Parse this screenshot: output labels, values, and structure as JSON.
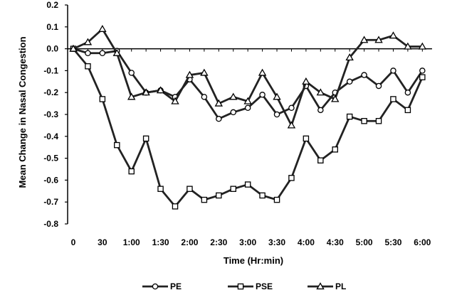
{
  "chart_data": {
    "type": "line",
    "title": "",
    "xlabel": "Time (Hr:min)",
    "ylabel": "Mean Change in Nasal Congestion",
    "ylim": [
      -0.8,
      0.2
    ],
    "yticks": [
      "0.2",
      "0.1",
      "0.0",
      "-0.1",
      "-0.2",
      "-0.3",
      "-0.4",
      "-0.5",
      "-0.6",
      "-0.7",
      "-0.8"
    ],
    "xticks": [
      "0",
      "30",
      "1:00",
      "1:30",
      "2:00",
      "2:30",
      "3:00",
      "3:30",
      "4:00",
      "4:30",
      "5:00",
      "5:30",
      "6:00"
    ],
    "x_minutes": [
      0,
      15,
      30,
      45,
      60,
      75,
      90,
      105,
      120,
      135,
      150,
      165,
      180,
      195,
      210,
      225,
      240,
      255,
      270,
      285,
      300,
      315,
      330,
      345,
      360
    ],
    "grid": false,
    "legend_position": "bottom",
    "series": [
      {
        "name": "PE",
        "marker": "circle",
        "values": [
          0,
          -0.02,
          -0.02,
          -0.01,
          -0.11,
          -0.2,
          -0.19,
          -0.22,
          -0.14,
          -0.22,
          -0.32,
          -0.29,
          -0.27,
          -0.21,
          -0.3,
          -0.27,
          -0.17,
          -0.28,
          -0.2,
          -0.15,
          -0.12,
          -0.17,
          -0.1,
          -0.2,
          -0.1
        ]
      },
      {
        "name": "PSE",
        "marker": "square",
        "values": [
          0,
          -0.08,
          -0.23,
          -0.44,
          -0.56,
          -0.41,
          -0.64,
          -0.72,
          -0.64,
          -0.69,
          -0.67,
          -0.64,
          -0.62,
          -0.67,
          -0.69,
          -0.59,
          -0.41,
          -0.51,
          -0.46,
          -0.31,
          -0.33,
          -0.33,
          -0.23,
          -0.28,
          -0.13
        ]
      },
      {
        "name": "PL",
        "marker": "triangle",
        "values": [
          0,
          0.03,
          0.09,
          -0.02,
          -0.22,
          -0.2,
          -0.19,
          -0.24,
          -0.12,
          -0.11,
          -0.25,
          -0.22,
          -0.24,
          -0.11,
          -0.22,
          -0.35,
          -0.15,
          -0.2,
          -0.23,
          -0.04,
          0.04,
          0.04,
          0.06,
          0.01,
          0.01
        ]
      }
    ]
  }
}
